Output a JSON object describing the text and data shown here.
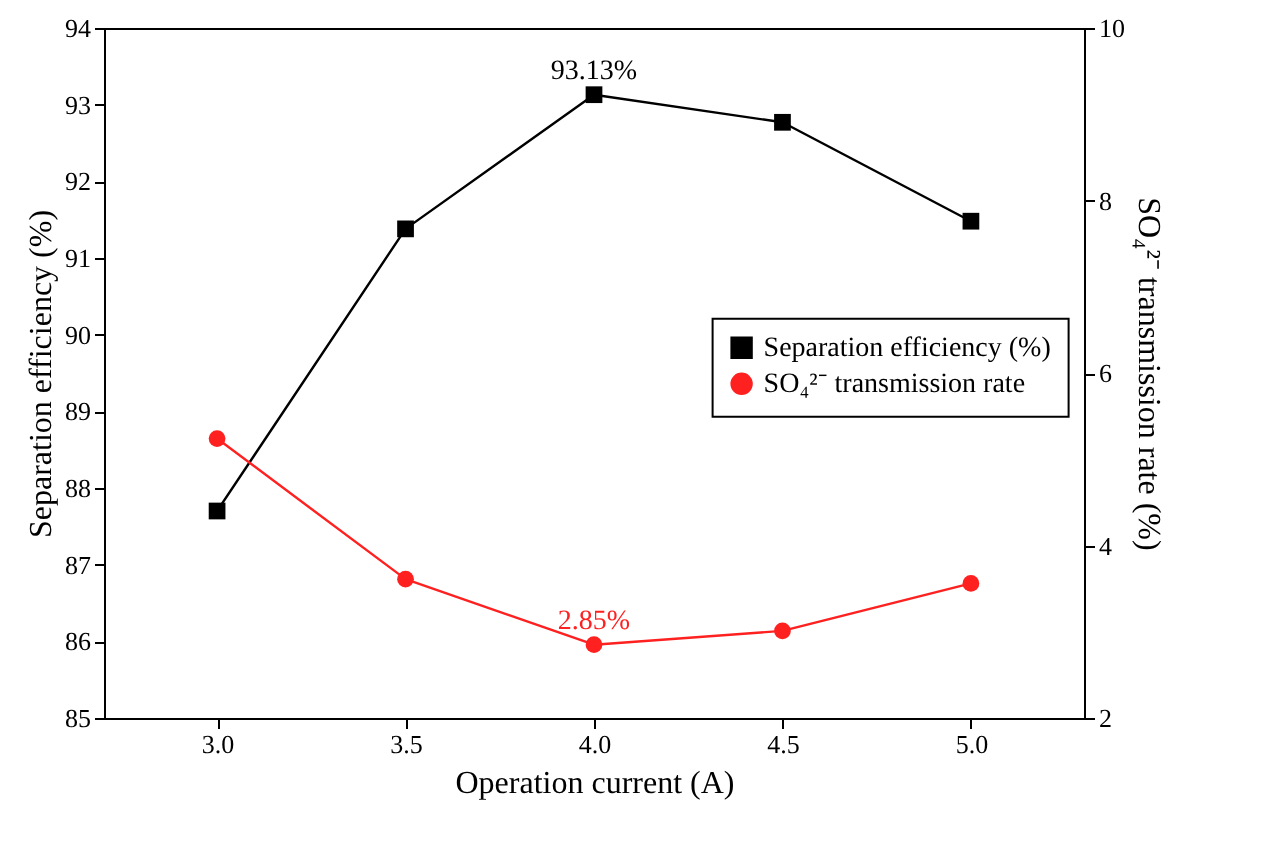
{
  "chart_data": {
    "type": "line",
    "xlabel": "Operation current (A)",
    "ylabel": "Separation efficiency (%)",
    "y2label": "SO₄²⁻ transmission rate (%)",
    "x": [
      3.0,
      3.5,
      4.0,
      4.5,
      5.0
    ],
    "series": [
      {
        "name": "Separation efficiency (%)",
        "color": "#000000",
        "marker": "square",
        "values": [
          87.7,
          91.38,
          93.13,
          92.77,
          91.48
        ],
        "value_labels": [
          null,
          null,
          "93.13%",
          null,
          null
        ]
      },
      {
        "name": "SO₄²⁻ transmission rate",
        "color": "#ff2020",
        "marker": "circle",
        "axis": "y2",
        "values": [
          5.24,
          3.61,
          2.85,
          3.01,
          3.56
        ],
        "value_labels": [
          null,
          null,
          "2.85%",
          null,
          null
        ]
      }
    ],
    "xlim": [
      2.7,
      5.3
    ],
    "xticks": [
      {
        "value": 3,
        "label": "3.0"
      },
      {
        "value": 3.5,
        "label": "3.5"
      },
      {
        "value": 4,
        "label": "4.0"
      },
      {
        "value": 4.5,
        "label": "4.5"
      },
      {
        "value": 5,
        "label": "5.0"
      }
    ],
    "ylim": [
      85,
      94
    ],
    "yticks": [
      85,
      86,
      87,
      88,
      89,
      90,
      91,
      92,
      93,
      94
    ],
    "y2lim": [
      2,
      10
    ],
    "y2ticks": [
      2,
      4,
      6,
      8,
      10
    ],
    "grid": false,
    "legend": "right"
  }
}
